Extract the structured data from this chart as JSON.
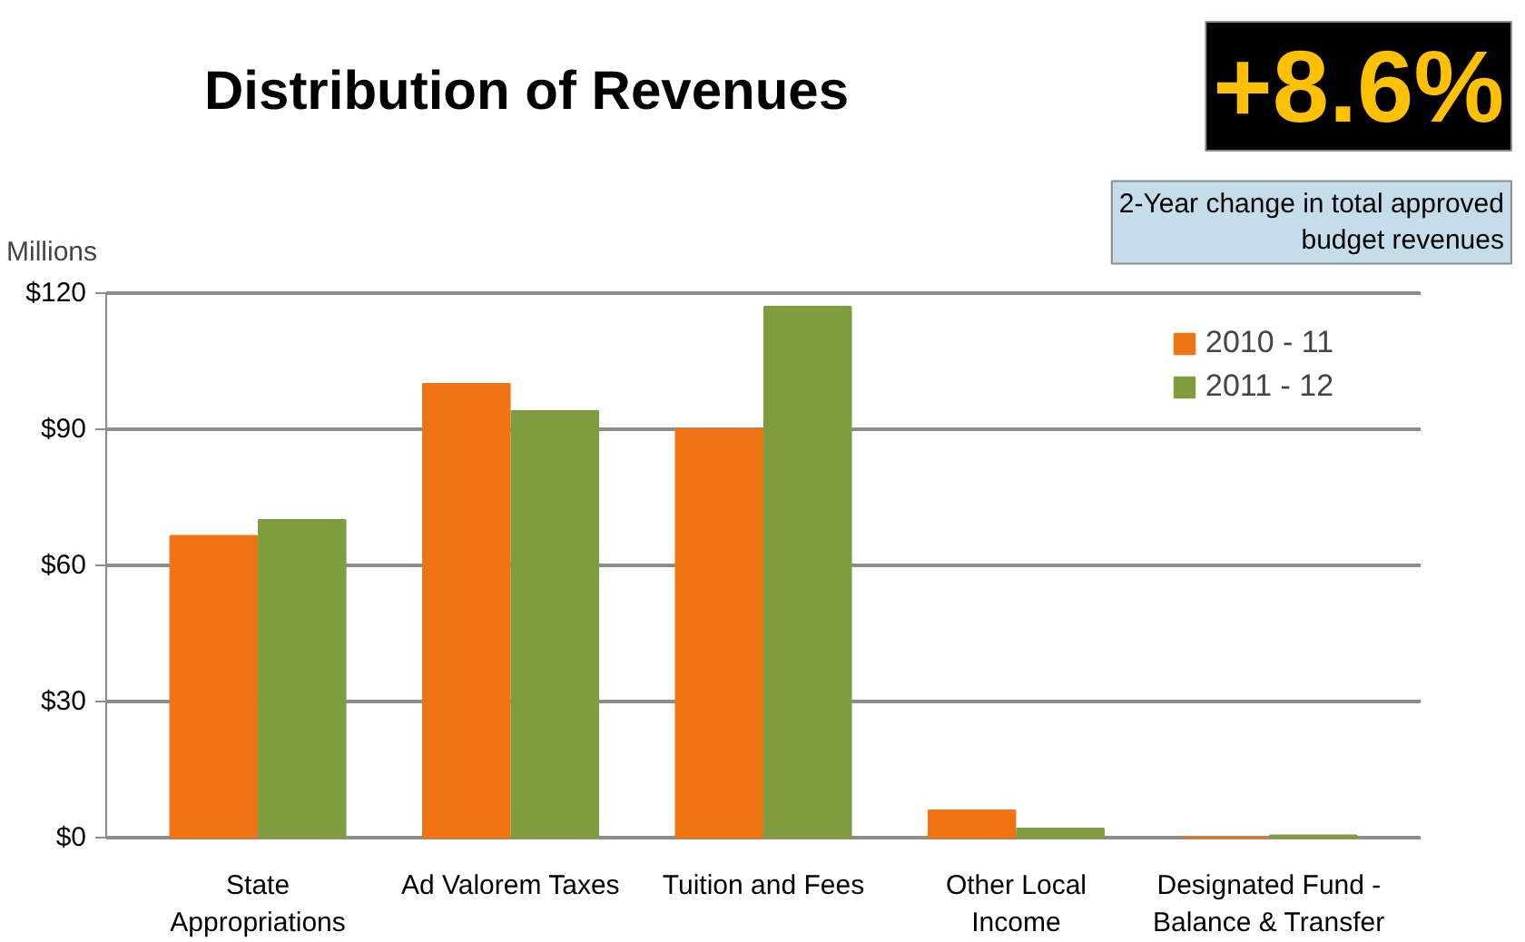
{
  "chart_data": {
    "type": "bar",
    "title": "Distribution of Revenues",
    "ylabel": "Millions",
    "categories": [
      "State\nAppropriations",
      "Ad Valorem Taxes",
      "Tuition and Fees",
      "Other Local\nIncome",
      "Designated Fund -\nBalance & Transfer"
    ],
    "series": [
      {
        "name": "2010 - 11",
        "color": "#f07314",
        "values": [
          66.5,
          100,
          90,
          6,
          0
        ]
      },
      {
        "name": "2011 - 12",
        "color": "#7f9c3f",
        "values": [
          70,
          94,
          117,
          2,
          0.5
        ]
      }
    ],
    "ylim": [
      0,
      120
    ],
    "yticks": [
      {
        "value": 0,
        "label": "$0"
      },
      {
        "value": 30,
        "label": "$30"
      },
      {
        "value": 60,
        "label": "$60"
      },
      {
        "value": 90,
        "label": "$90"
      },
      {
        "value": 120,
        "label": "$120"
      }
    ],
    "grid": "y",
    "legend": "top right",
    "annotations": [
      "+8.6%",
      "2-Year change in total approved budget revenues"
    ]
  }
}
